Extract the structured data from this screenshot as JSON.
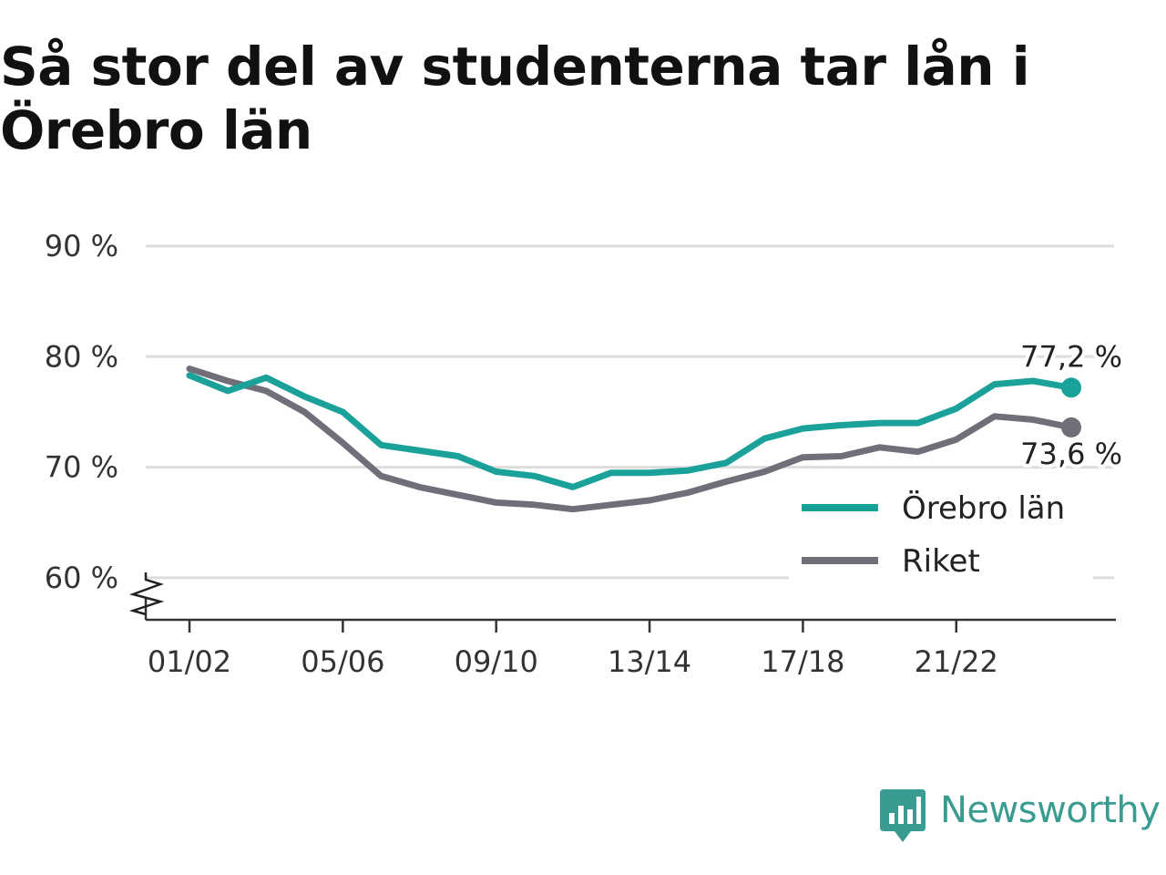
{
  "header": {
    "title": "Så stor del av studenterna tar lån i Örebro län"
  },
  "colors": {
    "orebro": "#1aa199",
    "riket": "#706e78",
    "grid": "#dddddd",
    "brand": "#3a9c91"
  },
  "brand": {
    "name": "Newsworthy",
    "icon": "newsworthy-logo-icon"
  },
  "chart_data": {
    "type": "line",
    "title": "Så stor del av studenterna tar lån i Örebro län",
    "xlabel": "",
    "ylabel": "",
    "x": [
      "01/02",
      "02/03",
      "03/04",
      "04/05",
      "05/06",
      "06/07",
      "07/08",
      "08/09",
      "09/10",
      "10/11",
      "11/12",
      "12/13",
      "13/14",
      "14/15",
      "15/16",
      "16/17",
      "17/18",
      "18/19",
      "19/20",
      "20/21",
      "21/22",
      "22/23",
      "23/24",
      "24/25"
    ],
    "x_tick_labels": [
      "01/02",
      "05/06",
      "09/10",
      "13/14",
      "17/18",
      "21/22"
    ],
    "y_tick_values": [
      60,
      70,
      80,
      90
    ],
    "y_tick_labels": [
      "60 %",
      "70 %",
      "80 %",
      "90 %"
    ],
    "ylim": [
      56.2,
      90
    ],
    "y_axis_break": true,
    "grid": true,
    "legend_position": "bottom-right",
    "series": [
      {
        "name": "Örebro län",
        "values": [
          78.3,
          76.9,
          78.1,
          76.4,
          75.0,
          72.0,
          71.5,
          71.0,
          69.6,
          69.2,
          68.2,
          69.5,
          69.5,
          69.7,
          70.4,
          72.6,
          73.5,
          73.8,
          74.0,
          74.0,
          75.3,
          77.5,
          77.8,
          77.2
        ],
        "end_label": "77,2 %"
      },
      {
        "name": "Riket",
        "values": [
          78.9,
          77.8,
          76.9,
          75.0,
          72.2,
          69.2,
          68.2,
          67.5,
          66.8,
          66.6,
          66.2,
          66.6,
          67.0,
          67.7,
          68.7,
          69.6,
          70.9,
          71.0,
          71.8,
          71.4,
          72.5,
          74.6,
          74.3,
          73.6
        ],
        "end_label": "73,6 %"
      }
    ]
  }
}
